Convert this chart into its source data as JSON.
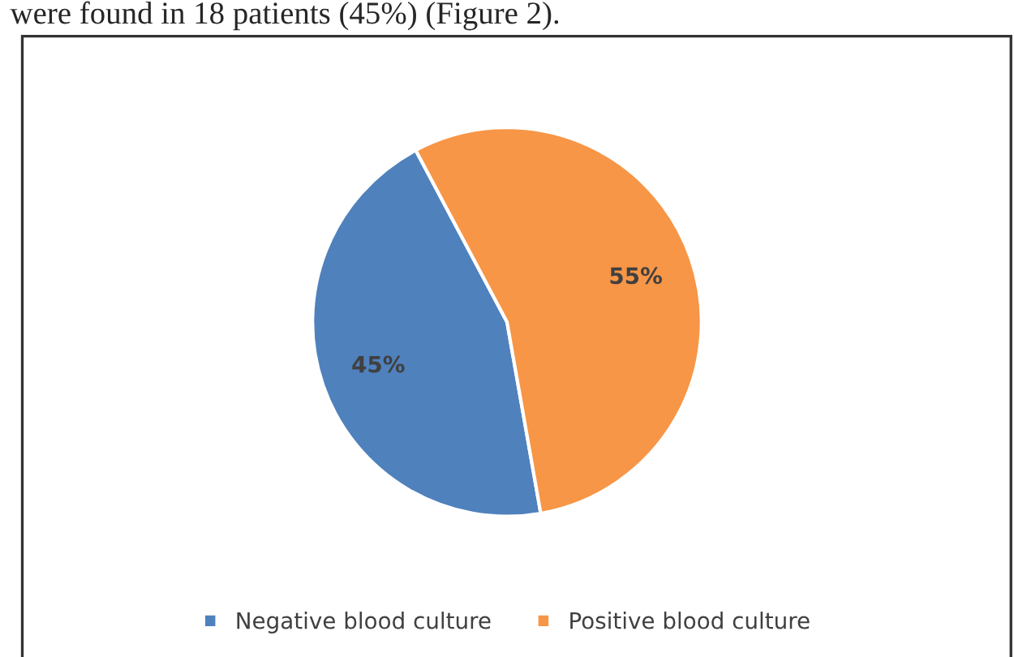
{
  "chart_data": {
    "type": "pie",
    "categories": [
      "Negative blood culture",
      "Positive blood culture"
    ],
    "values": [
      45,
      55
    ],
    "colors": [
      "#4f81bd",
      "#f79646"
    ],
    "value_labels": [
      "45%",
      "55%"
    ],
    "legend": "bottom",
    "annotations": [
      "were found in 18 patients (45%) (Figure 2)."
    ]
  }
}
